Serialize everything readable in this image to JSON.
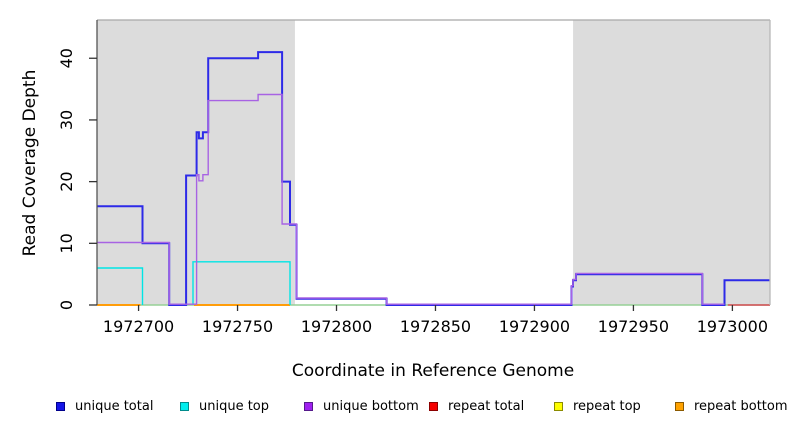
{
  "axes": {
    "xlabel": "Coordinate in Reference Genome",
    "ylabel": "Read Coverage Depth"
  },
  "chart_data": {
    "type": "line",
    "step": true,
    "title": "",
    "xlabel": "Coordinate in Reference Genome",
    "ylabel": "Read Coverage Depth",
    "xlim": [
      1972679,
      1973019
    ],
    "ylim": [
      0,
      46.2
    ],
    "xticks": [
      1972700,
      1972750,
      1972800,
      1972850,
      1972900,
      1972950,
      1973000
    ],
    "yticks": [
      0,
      10,
      20,
      30,
      40
    ],
    "grid": false,
    "legend_position": "bottom",
    "shaded_regions": {
      "color": "#dcdcdc",
      "x_ranges": [
        [
          1972679,
          1972779
        ],
        [
          1972919.5,
          1973019
        ]
      ]
    },
    "baseline": {
      "y": 0,
      "color": "#96d096"
    },
    "series": [
      {
        "name": "repeat top",
        "color": "#ffff00",
        "parts": []
      },
      {
        "name": "repeat bottom",
        "color": "#ff9d0a",
        "parts": [
          [
            [
              1972679,
              0
            ],
            [
              1972700.9,
              0
            ]
          ],
          [
            [
              1972728,
              0
            ],
            [
              1972776.5,
              0
            ]
          ]
        ]
      },
      {
        "name": "repeat total",
        "color": "#d84b55",
        "parts": [
          [
            [
              1972997.7,
              0
            ],
            [
              1973019,
              0
            ]
          ]
        ]
      },
      {
        "name": "unique total",
        "color": "#2d2ae8",
        "parts": [
          [
            [
              1972679,
              16
            ],
            [
              1972702,
              10
            ],
            [
              1972715.5,
              0
            ],
            [
              1972724,
              21
            ],
            [
              1972729.3,
              28
            ],
            [
              1972730.5,
              27
            ],
            [
              1972732.5,
              28
            ],
            [
              1972735.2,
              40
            ],
            [
              1972760.4,
              41
            ],
            [
              1972772.5,
              20
            ],
            [
              1972776.5,
              13
            ],
            [
              1972779.8,
              1
            ],
            [
              1972825.3,
              0
            ],
            [
              1972918.7,
              3
            ],
            [
              1972919.5,
              4
            ],
            [
              1972921,
              5
            ],
            [
              1972984.8,
              0
            ],
            [
              1972996,
              4
            ],
            [
              1973019,
              4
            ]
          ]
        ]
      },
      {
        "name": "unique top",
        "color": "#00e5e5",
        "parts": [
          [
            [
              1972679,
              6
            ],
            [
              1972702,
              0
            ]
          ],
          [
            [
              1972727.5,
              0
            ],
            [
              1972727.5,
              7
            ],
            [
              1972776.5,
              0
            ]
          ]
        ]
      },
      {
        "name": "unique bottom",
        "color": "#a863e3",
        "parts": [
          [
            [
              1972679,
              10
            ],
            [
              1972715.5,
              0
            ],
            [
              1972729.3,
              21
            ],
            [
              1972730.5,
              20
            ],
            [
              1972732.5,
              21
            ],
            [
              1972735.2,
              33
            ],
            [
              1972760.4,
              34
            ],
            [
              1972772.5,
              13
            ],
            [
              1972779.8,
              1
            ],
            [
              1972825.3,
              0
            ],
            [
              1972918.7,
              3
            ],
            [
              1972919.5,
              4
            ],
            [
              1972921,
              5
            ],
            [
              1972984.8,
              0
            ],
            [
              1972996,
              0
            ]
          ]
        ]
      }
    ]
  },
  "legend": {
    "items": [
      {
        "label": "unique total",
        "fill": "#1515e8",
        "border": "#00008b"
      },
      {
        "label": "unique top",
        "fill": "#00eded",
        "border": "#008b8b"
      },
      {
        "label": "unique bottom",
        "fill": "#a020f0",
        "border": "#551a8b"
      },
      {
        "label": "repeat total",
        "fill": "#f40000",
        "border": "#8b0000"
      },
      {
        "label": "repeat top",
        "fill": "#fdfd00",
        "border": "#8b8b00"
      },
      {
        "label": "repeat bottom",
        "fill": "#ffa200",
        "border": "#8b5a00"
      }
    ]
  }
}
